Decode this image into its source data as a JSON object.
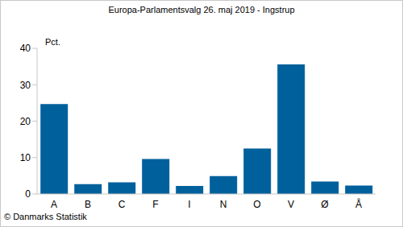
{
  "chart_data": {
    "type": "bar",
    "title": "Europa-Parlamentsvalg 26. maj 2019 - Ingstrup",
    "ylabel": "Pct.",
    "source": "© Danmarks Statistik",
    "categories": [
      "A",
      "B",
      "C",
      "F",
      "I",
      "N",
      "O",
      "V",
      "Ø",
      "Å"
    ],
    "values": [
      24.7,
      2.7,
      3.2,
      9.6,
      2.2,
      4.9,
      12.5,
      35.6,
      3.4,
      2.3
    ],
    "color": "#00609c",
    "ylim": [
      0,
      40
    ],
    "yticks": [
      0,
      10,
      20,
      30,
      40
    ],
    "grid": false
  }
}
